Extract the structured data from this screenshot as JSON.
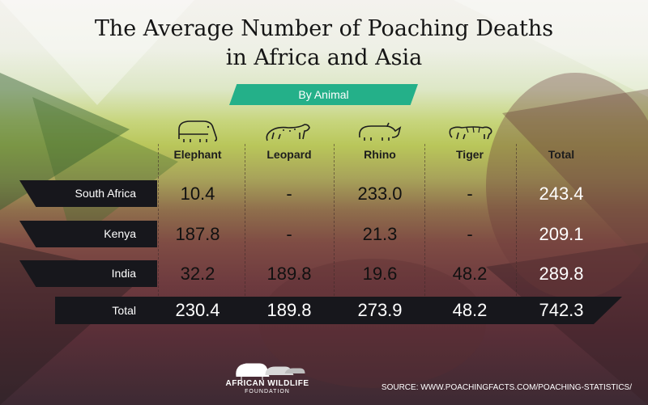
{
  "title_line1": "The Average Number of Poaching Deaths",
  "title_line2": "in Africa and Asia",
  "subtitle": "By Animal",
  "colors": {
    "banner": "#24b089",
    "label_bar": "#17171c",
    "title_text": "#151515"
  },
  "chart_data": {
    "type": "table",
    "columns": [
      "Elephant",
      "Leopard",
      "Rhino",
      "Tiger",
      "Total"
    ],
    "column_icons": [
      "elephant-icon",
      "leopard-icon",
      "rhino-icon",
      "tiger-icon",
      ""
    ],
    "rows": [
      {
        "label": "South Africa",
        "values": [
          "10.4",
          "-",
          "233.0",
          "-",
          "243.4"
        ]
      },
      {
        "label": "Kenya",
        "values": [
          "187.8",
          "-",
          "21.3",
          "-",
          "209.1"
        ]
      },
      {
        "label": "India",
        "values": [
          "32.2",
          "189.8",
          "19.6",
          "48.2",
          "289.8"
        ]
      }
    ],
    "total_row": {
      "label": "Total",
      "values": [
        "230.4",
        "189.8",
        "273.9",
        "48.2",
        "742.3"
      ]
    }
  },
  "logo": {
    "name": "AFRICAN WILDLIFE",
    "sub": "FOUNDATION"
  },
  "source": "SOURCE: WWW.POACHINGFACTS.COM/POACHING-STATISTICS/"
}
